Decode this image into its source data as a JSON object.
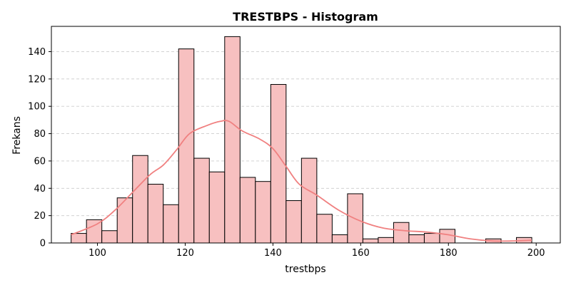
{
  "chart_data": {
    "type": "bar",
    "subtype": "histogram",
    "title": "TRESTBPS - Histogram",
    "xlabel": "trestbps",
    "ylabel": "Frekans",
    "bin_width": 3.5,
    "bins": [
      {
        "x0": 94.0,
        "x1": 97.5,
        "count": 7
      },
      {
        "x0": 97.5,
        "x1": 101.0,
        "count": 17
      },
      {
        "x0": 101.0,
        "x1": 104.5,
        "count": 9
      },
      {
        "x0": 104.5,
        "x1": 108.0,
        "count": 33
      },
      {
        "x0": 108.0,
        "x1": 111.5,
        "count": 64
      },
      {
        "x0": 111.5,
        "x1": 115.0,
        "count": 43
      },
      {
        "x0": 115.0,
        "x1": 118.5,
        "count": 28
      },
      {
        "x0": 118.5,
        "x1": 122.0,
        "count": 142
      },
      {
        "x0": 122.0,
        "x1": 125.5,
        "count": 62
      },
      {
        "x0": 125.5,
        "x1": 129.0,
        "count": 52
      },
      {
        "x0": 129.0,
        "x1": 132.5,
        "count": 151
      },
      {
        "x0": 132.5,
        "x1": 136.0,
        "count": 48
      },
      {
        "x0": 136.0,
        "x1": 139.5,
        "count": 45
      },
      {
        "x0": 139.5,
        "x1": 143.0,
        "count": 116
      },
      {
        "x0": 143.0,
        "x1": 146.5,
        "count": 31
      },
      {
        "x0": 146.5,
        "x1": 150.0,
        "count": 62
      },
      {
        "x0": 150.0,
        "x1": 153.5,
        "count": 21
      },
      {
        "x0": 153.5,
        "x1": 157.0,
        "count": 6
      },
      {
        "x0": 157.0,
        "x1": 160.5,
        "count": 36
      },
      {
        "x0": 160.5,
        "x1": 164.0,
        "count": 3
      },
      {
        "x0": 164.0,
        "x1": 167.5,
        "count": 4
      },
      {
        "x0": 167.5,
        "x1": 171.0,
        "count": 15
      },
      {
        "x0": 171.0,
        "x1": 174.5,
        "count": 6
      },
      {
        "x0": 174.5,
        "x1": 178.0,
        "count": 7
      },
      {
        "x0": 178.0,
        "x1": 181.5,
        "count": 10
      },
      {
        "x0": 181.5,
        "x1": 185.0,
        "count": 0
      },
      {
        "x0": 185.0,
        "x1": 188.5,
        "count": 0
      },
      {
        "x0": 188.5,
        "x1": 192.0,
        "count": 3
      },
      {
        "x0": 192.0,
        "x1": 195.5,
        "count": 0
      },
      {
        "x0": 195.5,
        "x1": 199.0,
        "count": 4
      }
    ],
    "kde": {
      "x": [
        94,
        100,
        104,
        108,
        112,
        115,
        118,
        121,
        125,
        128,
        130,
        133,
        137,
        140,
        143,
        146,
        150,
        155,
        160,
        165,
        170,
        175,
        180,
        185,
        190,
        195,
        199
      ],
      "y": [
        6,
        14,
        24,
        37,
        50,
        57,
        68,
        80,
        86,
        89,
        89,
        82,
        76,
        69,
        56,
        43,
        35,
        24,
        16,
        11,
        9,
        8,
        6,
        3,
        1.5,
        1.5,
        2
      ]
    },
    "xlim": [
      89.5,
      205.5
    ],
    "ylim": [
      0,
      158.5
    ],
    "xticks": [
      100,
      120,
      140,
      160,
      180,
      200
    ],
    "yticks": [
      0,
      20,
      40,
      60,
      80,
      100,
      120,
      140
    ],
    "grid": {
      "axis": "y",
      "style": "dashed"
    },
    "colors": {
      "bar_fill": "#f7c0c0",
      "bar_edge": "#000000",
      "kde_line": "#f08080",
      "grid": "#cccccc"
    }
  }
}
